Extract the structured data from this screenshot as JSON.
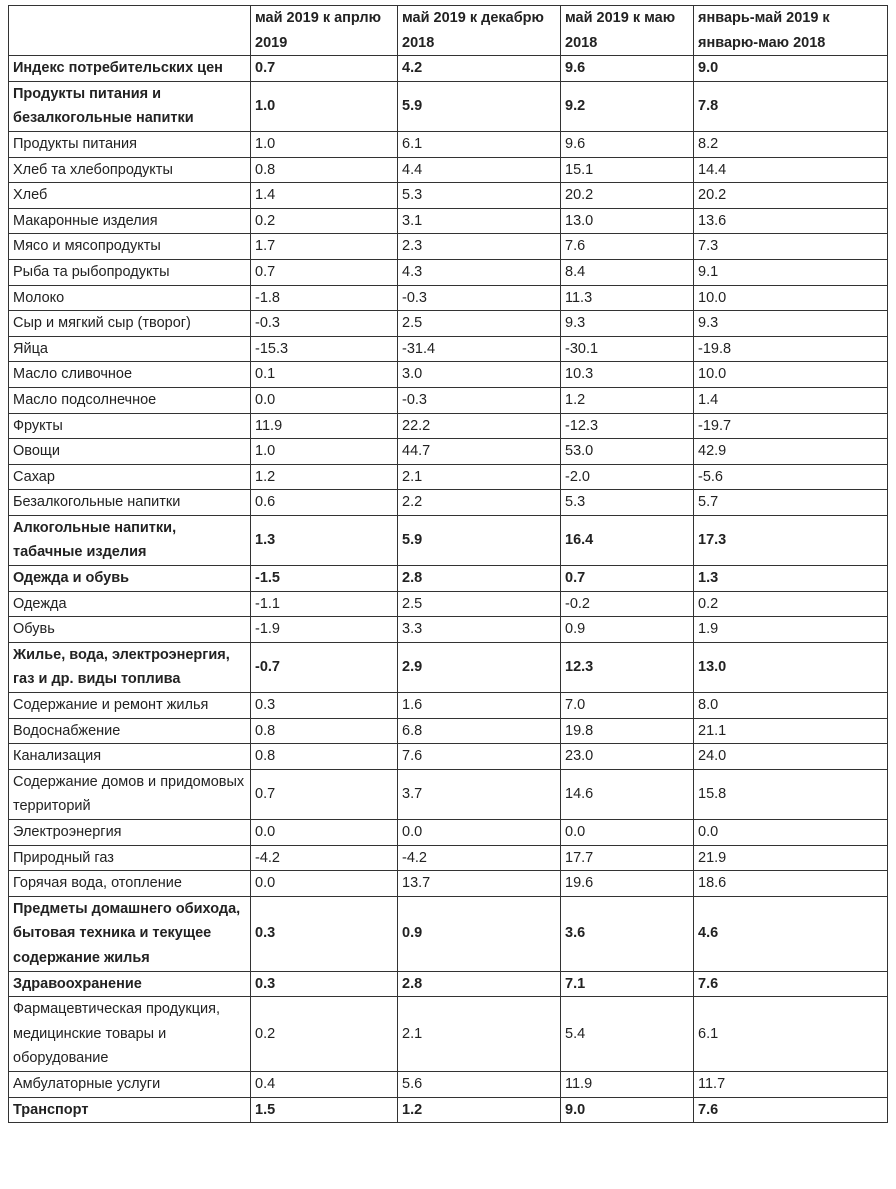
{
  "table": {
    "header": [
      "май 2019 к апрлю 2019",
      "май 2019 к декабрю 2018",
      "май 2019 к маю 2018",
      "январь-май 2019 к январю-маю 2018"
    ],
    "rows": [
      {
        "label": "Индекс потребительских цен",
        "values": [
          "0.7",
          "4.2",
          "9.6",
          "9.0"
        ],
        "bold": true
      },
      {
        "label": "Продукты питания и безалкогольные напитки",
        "values": [
          "1.0",
          "5.9",
          "9.2",
          "7.8"
        ],
        "bold": true
      },
      {
        "label": "Продукты питания",
        "values": [
          "1.0",
          "6.1",
          "9.6",
          "8.2"
        ],
        "bold": false
      },
      {
        "label": "Хлеб та хлебопродукты",
        "values": [
          "0.8",
          "4.4",
          "15.1",
          "14.4"
        ],
        "bold": false
      },
      {
        "label": "Хлеб",
        "values": [
          "1.4",
          "5.3",
          "20.2",
          "20.2"
        ],
        "bold": false
      },
      {
        "label": "Макаронные изделия",
        "values": [
          "0.2",
          "3.1",
          "13.0",
          "13.6"
        ],
        "bold": false
      },
      {
        "label": "Мясо и мясопродукты",
        "values": [
          "1.7",
          "2.3",
          "7.6",
          "7.3"
        ],
        "bold": false
      },
      {
        "label": "Рыба та рыбопродукты",
        "values": [
          "0.7",
          "4.3",
          "8.4",
          "9.1"
        ],
        "bold": false
      },
      {
        "label": "Молоко",
        "values": [
          "-1.8",
          "-0.3",
          "11.3",
          "10.0"
        ],
        "bold": false
      },
      {
        "label": "Сыр и мягкий сыр (творог)",
        "values": [
          "-0.3",
          "2.5",
          "9.3",
          "9.3"
        ],
        "bold": false
      },
      {
        "label": "Яйца",
        "values": [
          "-15.3",
          "-31.4",
          "-30.1",
          "-19.8"
        ],
        "bold": false
      },
      {
        "label": "Масло сливочное",
        "values": [
          "0.1",
          "3.0",
          "10.3",
          "10.0"
        ],
        "bold": false
      },
      {
        "label": "Масло подсолнечное",
        "values": [
          "0.0",
          "-0.3",
          "1.2",
          "1.4"
        ],
        "bold": false
      },
      {
        "label": "Фрукты",
        "values": [
          "11.9",
          "22.2",
          "-12.3",
          "-19.7"
        ],
        "bold": false
      },
      {
        "label": "Овощи",
        "values": [
          "1.0",
          "44.7",
          "53.0",
          "42.9"
        ],
        "bold": false
      },
      {
        "label": "Сахар",
        "values": [
          "1.2",
          "2.1",
          "-2.0",
          "-5.6"
        ],
        "bold": false
      },
      {
        "label": "Безалкогольные напитки",
        "values": [
          "0.6",
          "2.2",
          "5.3",
          "5.7"
        ],
        "bold": false
      },
      {
        "label": "Алкогольные напитки, табачные изделия",
        "values": [
          "1.3",
          "5.9",
          "16.4",
          "17.3"
        ],
        "bold": true
      },
      {
        "label": "Одежда и обувь",
        "values": [
          "-1.5",
          "2.8",
          "0.7",
          "1.3"
        ],
        "bold": true
      },
      {
        "label": "Одежда",
        "values": [
          "-1.1",
          "2.5",
          "-0.2",
          "0.2"
        ],
        "bold": false
      },
      {
        "label": "Обувь",
        "values": [
          "-1.9",
          "3.3",
          "0.9",
          "1.9"
        ],
        "bold": false
      },
      {
        "label": "Жилье, вода, электроэнергия, газ и др. виды топлива",
        "values": [
          "-0.7",
          "2.9",
          "12.3",
          "13.0"
        ],
        "bold": true
      },
      {
        "label": "Содержание и ремонт жилья",
        "values": [
          "0.3",
          "1.6",
          "7.0",
          "8.0"
        ],
        "bold": false
      },
      {
        "label": "Водоснабжение",
        "values": [
          "0.8",
          "6.8",
          "19.8",
          "21.1"
        ],
        "bold": false
      },
      {
        "label": "Канализация",
        "values": [
          "0.8",
          "7.6",
          "23.0",
          "24.0"
        ],
        "bold": false
      },
      {
        "label": "Содержание домов и придомовых территорий",
        "values": [
          "0.7",
          "3.7",
          "14.6",
          "15.8"
        ],
        "bold": false
      },
      {
        "label": "Электроэнергия",
        "values": [
          "0.0",
          "0.0",
          "0.0",
          "0.0"
        ],
        "bold": false
      },
      {
        "label": "Природный газ",
        "values": [
          "-4.2",
          "-4.2",
          "17.7",
          "21.9"
        ],
        "bold": false
      },
      {
        "label": "Горячая вода, отопление",
        "values": [
          "0.0",
          "13.7",
          "19.6",
          "18.6"
        ],
        "bold": false
      },
      {
        "label": "Предметы домашнего обихода, бытовая техника и текущее содержание жилья",
        "values": [
          "0.3",
          "0.9",
          "3.6",
          "4.6"
        ],
        "bold": true
      },
      {
        "label": "Здравоохранение",
        "values": [
          "0.3",
          "2.8",
          "7.1",
          "7.6"
        ],
        "bold": true
      },
      {
        "label": "Фармацевтическая продукция, медицинские товары и оборудование",
        "values": [
          "0.2",
          "2.1",
          "5.4",
          "6.1"
        ],
        "bold": false
      },
      {
        "label": "Амбулаторные услуги",
        "values": [
          "0.4",
          "5.6",
          "11.9",
          "11.7"
        ],
        "bold": false
      },
      {
        "label": "Транспорт",
        "values": [
          "1.5",
          "1.2",
          "9.0",
          "7.6"
        ],
        "bold": true
      }
    ]
  }
}
